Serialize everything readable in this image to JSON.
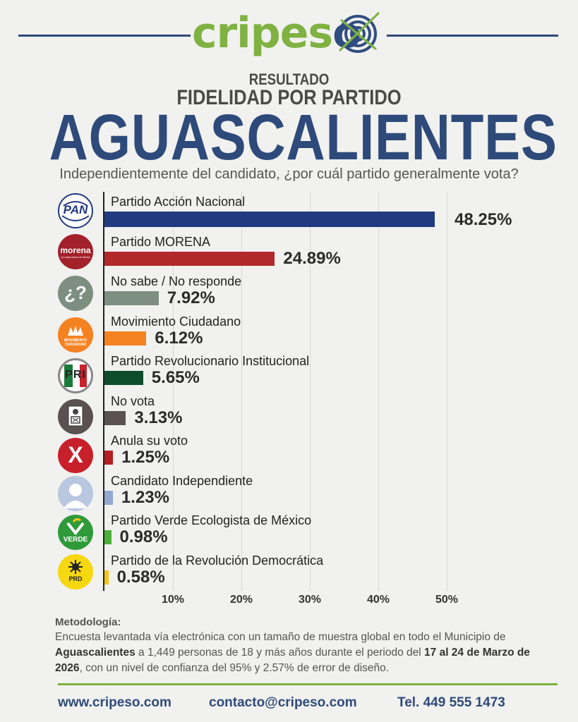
{
  "logo": {
    "part1": "cripes",
    "part2": "o"
  },
  "header": {
    "resultado": "RESULTADO",
    "fidelidad": "FIDELIDAD POR PARTIDO",
    "region": "AGUASCALIENTES",
    "question": "Independientemente del candidato, ¿por cuál partido generalmente vota?"
  },
  "icons": {
    "pan": "PAN",
    "morena": "morena",
    "morena_sub": "La esperanza de México",
    "ns": "¿?",
    "mc": "MOVIMIENTO CIUDADANO",
    "pri": "PRI",
    "x": "X",
    "verde": "VERDE",
    "prd": "PRD"
  },
  "chart_data": {
    "type": "bar",
    "orientation": "horizontal",
    "categories": [
      "Partido Acción Nacional",
      "Partido MORENA",
      "No sabe / No responde",
      "Movimiento Ciudadano",
      "Partido Revolucionario Institucional",
      "No vota",
      "Anula su voto",
      "Candidato Independiente",
      "Partido Verde Ecologista de México",
      "Partido de la Revolución Democrática"
    ],
    "values": [
      48.25,
      24.89,
      7.92,
      6.12,
      5.65,
      3.13,
      1.25,
      1.23,
      0.98,
      0.58
    ],
    "value_labels": [
      "48.25%",
      "24.89%",
      "7.92%",
      "6.12%",
      "5.65%",
      "3.13%",
      "1.25%",
      "1.23%",
      "0.98%",
      "0.58%"
    ],
    "colors": [
      "#223a80",
      "#b3282b",
      "#7d8f80",
      "#f58220",
      "#0e4d2c",
      "#5a5252",
      "#b51f26",
      "#93a9cf",
      "#4caf3a",
      "#f5c518"
    ],
    "xlim": [
      0,
      50
    ],
    "ticks": [
      "10%",
      "20%",
      "30%",
      "40%",
      "50%"
    ],
    "tick_values": [
      10,
      20,
      30,
      40,
      50
    ],
    "grid": true
  },
  "methodology": {
    "title": "Metodología:",
    "p1": "Encuesta levantada vía electrónica con un tamaño de muestra global en todo el Municipio de ",
    "b1": "Aguascalientes",
    "p2": " a 1,449 personas de 18 y más años durante el periodo del ",
    "b2": "17 al 24 de Marzo de 2026",
    "p3": ", con un nivel de confianza del 95% y 2.57% de error de diseño."
  },
  "footer": {
    "web": "www.cripeso.com",
    "email": "contacto@cripeso.com",
    "phone": "Tel. 449 555 1473"
  }
}
